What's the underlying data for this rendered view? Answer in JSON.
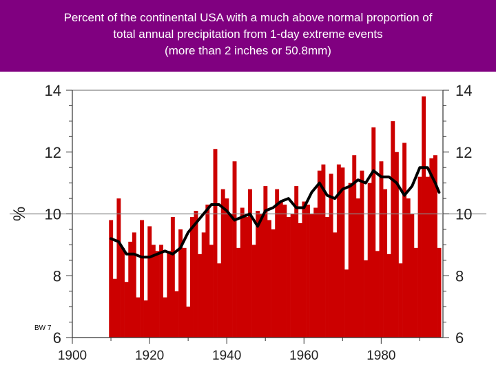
{
  "header": {
    "title_line1": "Percent of the continental USA with a much above normal proportion of",
    "title_line2": "total annual precipitation from 1-day extreme events",
    "title_line3": "(more than 2 inches or 50.8mm)"
  },
  "colors": {
    "title_band": "#800080",
    "bars": "#cc0000",
    "smooth_line": "#000000",
    "reference_line": "#888888"
  },
  "chart_data": {
    "type": "bar",
    "title": "Percent of the continental USA with a much above normal proportion of total annual precipitation from 1-day extreme events (more than 2 inches or 50.8mm)",
    "ylabel": "%",
    "xlabel": "",
    "xlim": [
      1900,
      1996
    ],
    "ylim": [
      6,
      14
    ],
    "xticks": [
      "1900",
      "1920",
      "1940",
      "1960",
      "1980"
    ],
    "yticks_left": [
      "6",
      "8",
      "10",
      "12",
      "14"
    ],
    "yticks_right": [
      "6",
      "8",
      "10",
      "12",
      "14"
    ],
    "reference_line": 10,
    "annotation": "BW 7",
    "series": [
      {
        "type": "bar",
        "x": [
          1910,
          1911,
          1912,
          1913,
          1914,
          1915,
          1916,
          1917,
          1918,
          1919,
          1920,
          1921,
          1922,
          1923,
          1924,
          1925,
          1926,
          1927,
          1928,
          1929,
          1930,
          1931,
          1932,
          1933,
          1934,
          1935,
          1936,
          1937,
          1938,
          1939,
          1940,
          1941,
          1942,
          1943,
          1944,
          1945,
          1946,
          1947,
          1948,
          1949,
          1950,
          1951,
          1952,
          1953,
          1954,
          1955,
          1956,
          1957,
          1958,
          1959,
          1960,
          1961,
          1962,
          1963,
          1964,
          1965,
          1966,
          1967,
          1968,
          1969,
          1970,
          1971,
          1972,
          1973,
          1974,
          1975,
          1976,
          1977,
          1978,
          1979,
          1980,
          1981,
          1982,
          1983,
          1984,
          1985,
          1986,
          1987,
          1988,
          1989,
          1990,
          1991,
          1992,
          1993,
          1994,
          1995
        ],
        "values": [
          9.8,
          7.9,
          10.5,
          8.9,
          7.8,
          9.1,
          9.4,
          7.3,
          9.8,
          7.2,
          9.6,
          9.0,
          8.8,
          9.0,
          7.3,
          8.8,
          9.9,
          7.5,
          9.5,
          8.9,
          7.0,
          9.9,
          10.1,
          8.7,
          9.4,
          10.3,
          9.0,
          12.1,
          8.4,
          10.8,
          10.5,
          10.0,
          11.7,
          8.9,
          10.2,
          9.9,
          10.8,
          9.0,
          10.1,
          10.0,
          10.9,
          9.8,
          9.5,
          10.8,
          10.4,
          10.3,
          9.9,
          10.0,
          10.9,
          9.7,
          10.4,
          10.3,
          10.0,
          10.2,
          11.4,
          11.6,
          9.9,
          11.3,
          9.4,
          11.6,
          11.5,
          8.2,
          11.0,
          11.9,
          10.5,
          11.4,
          8.5,
          11.0,
          12.8,
          8.8,
          11.7,
          10.8,
          8.7,
          13.0,
          12.0,
          8.4,
          12.3,
          10.5,
          10.0,
          8.9,
          11.2,
          13.8,
          11.2,
          11.8,
          11.9,
          8.9
        ]
      },
      {
        "type": "line",
        "x": [
          1910,
          1912,
          1914,
          1916,
          1918,
          1920,
          1922,
          1924,
          1926,
          1928,
          1930,
          1932,
          1934,
          1936,
          1938,
          1940,
          1942,
          1944,
          1946,
          1948,
          1950,
          1952,
          1954,
          1956,
          1958,
          1960,
          1962,
          1964,
          1966,
          1968,
          1970,
          1972,
          1974,
          1976,
          1978,
          1980,
          1982,
          1984,
          1986,
          1988,
          1990,
          1992,
          1994,
          1995
        ],
        "values": [
          9.2,
          9.1,
          8.7,
          8.7,
          8.6,
          8.6,
          8.7,
          8.8,
          8.7,
          8.9,
          9.4,
          9.7,
          10.0,
          10.3,
          10.3,
          10.1,
          9.8,
          9.9,
          10.0,
          9.6,
          10.1,
          10.2,
          10.4,
          10.5,
          10.2,
          10.2,
          10.7,
          11.0,
          10.6,
          10.5,
          10.8,
          10.9,
          11.1,
          11.0,
          11.4,
          11.2,
          11.2,
          11.0,
          10.6,
          10.9,
          11.5,
          11.5,
          11.0,
          10.7
        ]
      }
    ]
  }
}
